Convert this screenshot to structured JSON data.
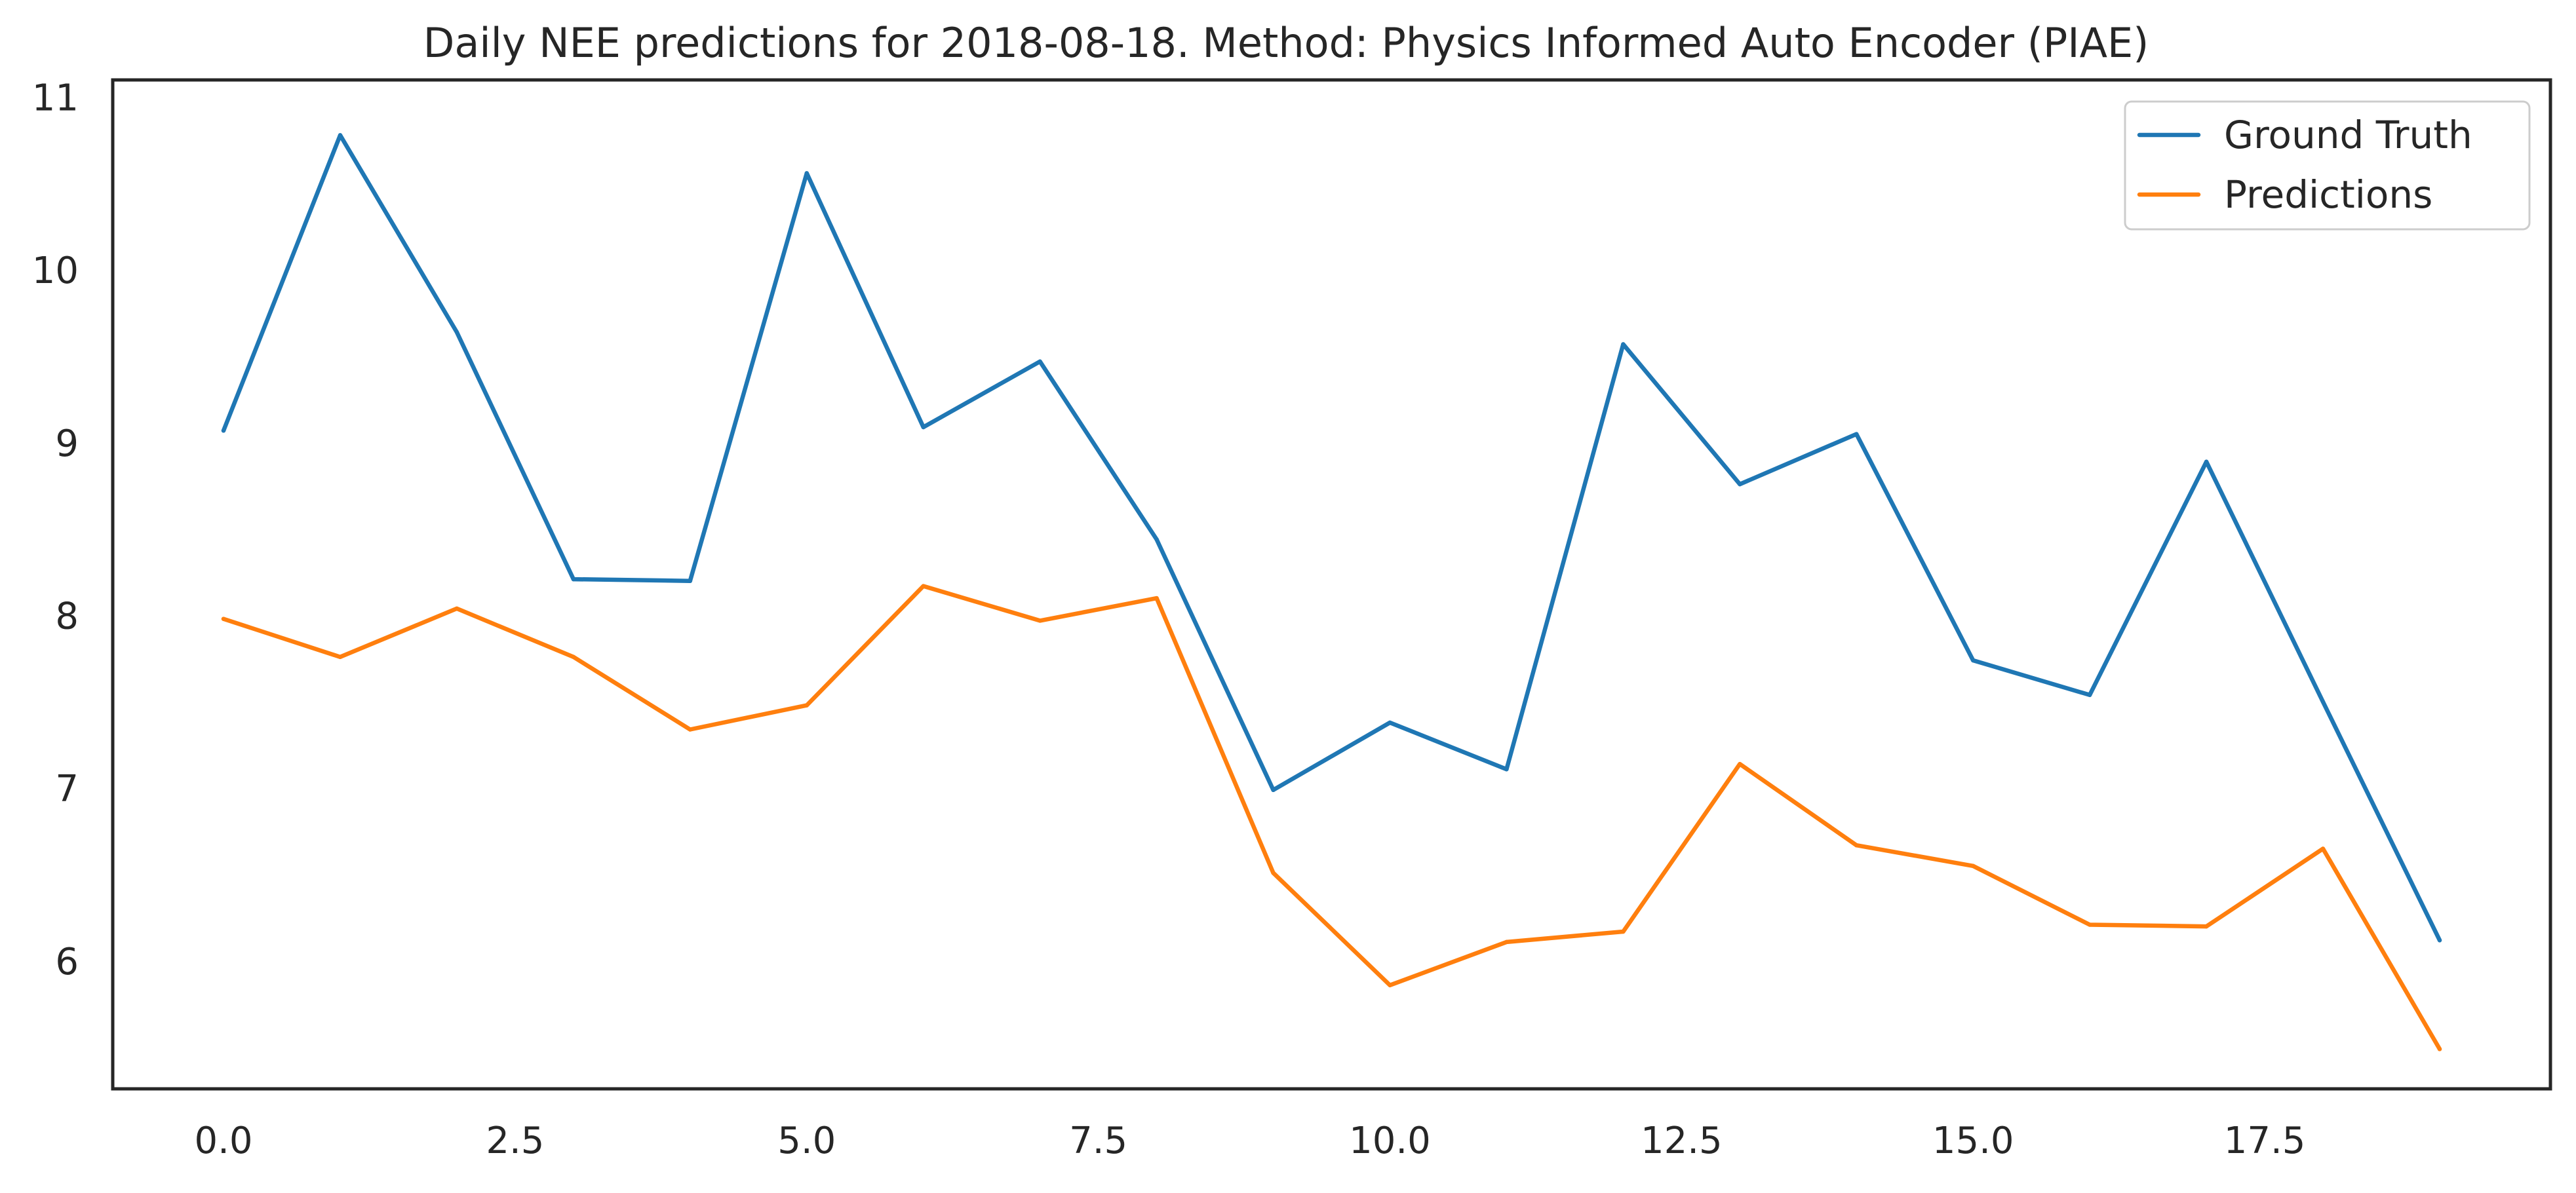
{
  "chart_data": {
    "type": "line",
    "title": "Daily NEE predictions for 2018-08-18. Method: Physics Informed Auto Encoder (PIAE)",
    "xlabel": "",
    "ylabel": "",
    "xlim": [
      -0.95,
      19.95
    ],
    "ylim": [
      5.26,
      11.1
    ],
    "x_ticks": [
      0.0,
      2.5,
      5.0,
      7.5,
      10.0,
      12.5,
      15.0,
      17.5
    ],
    "x_tick_labels": [
      "0.0",
      "2.5",
      "5.0",
      "7.5",
      "10.0",
      "12.5",
      "15.0",
      "17.5"
    ],
    "y_ticks": [
      6,
      7,
      8,
      9,
      10,
      11
    ],
    "y_tick_labels": [
      "6",
      "7",
      "8",
      "9",
      "10",
      "11"
    ],
    "grid": false,
    "legend_position": "upper right",
    "x": [
      0,
      1,
      2,
      3,
      4,
      5,
      6,
      7,
      8,
      9,
      10,
      11,
      12,
      13,
      14,
      15,
      16,
      17,
      18,
      19
    ],
    "series": [
      {
        "name": "Ground Truth",
        "color": "#1f77b4",
        "values": [
          9.07,
          10.78,
          9.64,
          8.21,
          8.2,
          10.56,
          9.09,
          9.47,
          8.44,
          6.99,
          7.38,
          7.11,
          9.57,
          8.76,
          9.05,
          7.74,
          7.54,
          8.89,
          7.5,
          6.12
        ]
      },
      {
        "name": "Predictions",
        "color": "#ff7f0e",
        "values": [
          7.98,
          7.76,
          8.04,
          7.76,
          7.34,
          7.48,
          8.17,
          7.97,
          8.1,
          6.51,
          5.86,
          6.11,
          6.17,
          7.14,
          6.67,
          6.55,
          6.21,
          6.2,
          6.65,
          5.49
        ]
      }
    ]
  }
}
